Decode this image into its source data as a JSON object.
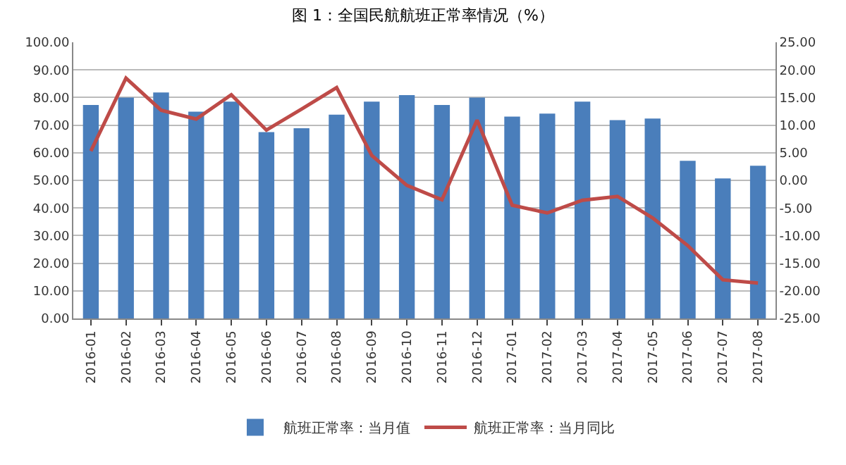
{
  "chart_data": {
    "type": "bar",
    "title": "图 1：全国民航航班正常率情况（%）",
    "categories": [
      "2016-01",
      "2016-02",
      "2016-03",
      "2016-04",
      "2016-05",
      "2016-06",
      "2016-07",
      "2016-08",
      "2016-09",
      "2016-10",
      "2016-11",
      "2016-12",
      "2017-01",
      "2017-02",
      "2017-03",
      "2017-04",
      "2017-05",
      "2017-06",
      "2017-07",
      "2017-08"
    ],
    "series": [
      {
        "name": "航班正常率：当月值",
        "color": "#4a7ebb",
        "values": [
          77.3,
          80,
          81.8,
          74.9,
          78.5,
          67.5,
          68.9,
          73.8,
          78.5,
          80.9,
          77.3,
          80,
          73.1,
          74.2,
          78.5,
          71.8,
          72.4,
          57.1,
          50.7,
          55.3
        ]
      },
      {
        "name": "航班正常率：当月同比",
        "type": "line",
        "axis": "y2",
        "color": "#be4b48",
        "values": [
          5.3,
          18.5,
          12.7,
          11.1,
          15.5,
          9.1,
          12.9,
          16.8,
          4.5,
          -0.9,
          -3.5,
          10.9,
          -4.5,
          -5.9,
          -3.6,
          -2.9,
          -6.8,
          -11.8,
          -18,
          -18.6
        ]
      }
    ],
    "ylim": [
      0,
      100
    ],
    "yticks": [
      {
        "value": 0,
        "label": "0.00"
      },
      {
        "value": 10,
        "label": "10.00"
      },
      {
        "value": 20,
        "label": "20.00"
      },
      {
        "value": 30,
        "label": "30.00"
      },
      {
        "value": 40,
        "label": "40.00"
      },
      {
        "value": 50,
        "label": "50.00"
      },
      {
        "value": 60,
        "label": "60.00"
      },
      {
        "value": 70,
        "label": "70.00"
      },
      {
        "value": 80,
        "label": "80.00"
      },
      {
        "value": 90,
        "label": "90.00"
      },
      {
        "value": 100,
        "label": "100.00"
      }
    ],
    "y2lim": [
      -25,
      25
    ],
    "y2ticks": [
      {
        "value": -25,
        "label": "-25.00"
      },
      {
        "value": -20,
        "label": "-20.00"
      },
      {
        "value": -15,
        "label": "-15.00"
      },
      {
        "value": -10,
        "label": "-10.00"
      },
      {
        "value": -5,
        "label": "-5.00"
      },
      {
        "value": 0,
        "label": "0.00"
      },
      {
        "value": 5,
        "label": "5.00"
      },
      {
        "value": 10,
        "label": "10.00"
      },
      {
        "value": 15,
        "label": "15.00"
      },
      {
        "value": 20,
        "label": "20.00"
      },
      {
        "value": 25,
        "label": "25.00"
      }
    ],
    "grid": "y",
    "legend": "bottom",
    "marker": "none",
    "line_style": "solid"
  }
}
